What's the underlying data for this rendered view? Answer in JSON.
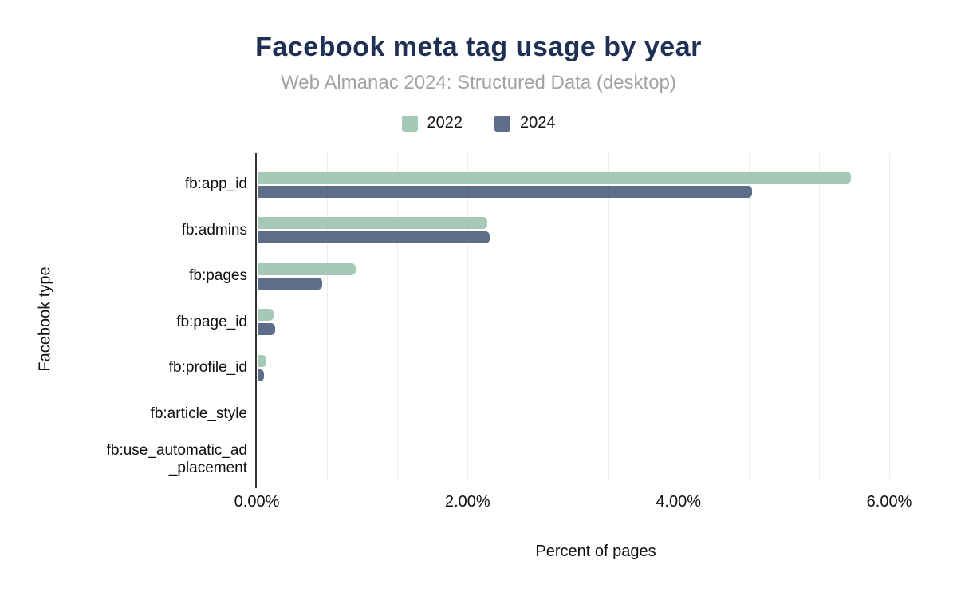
{
  "header": {
    "title": "Facebook meta tag usage by year",
    "subtitle": "Web Almanac 2024: Structured Data (desktop)"
  },
  "chart_data": {
    "type": "bar",
    "orientation": "horizontal",
    "title": "Facebook meta tag usage by year",
    "subtitle": "Web Almanac 2024: Structured Data (desktop)",
    "xlabel": "Percent of pages",
    "ylabel": "Facebook type",
    "categories": [
      "fb:app_id",
      "fb:admins",
      "fb:pages",
      "fb:page_id",
      "fb:profile_id",
      "fb:article_style",
      "fb:use_automatic_ad_placement"
    ],
    "categories_display": [
      [
        "fb:app_id"
      ],
      [
        "fb:admins"
      ],
      [
        "fb:pages"
      ],
      [
        "fb:page_id"
      ],
      [
        "fb:profile_id"
      ],
      [
        "fb:article_style"
      ],
      [
        "fb:use_automatic_ad",
        "_placement"
      ]
    ],
    "series": [
      {
        "name": "2022",
        "color": "#a5c9b6",
        "values": [
          5.63,
          2.18,
          0.93,
          0.15,
          0.08,
          0.01,
          0.01
        ]
      },
      {
        "name": "2024",
        "color": "#5f6e88",
        "values": [
          4.69,
          2.2,
          0.61,
          0.17,
          0.06,
          0.0,
          0.0
        ]
      }
    ],
    "x_ticks": [
      "0.00%",
      "2.00%",
      "4.00%",
      "6.00%"
    ],
    "x_tick_values": [
      0,
      2,
      4,
      6
    ],
    "xlim": [
      0,
      6.4
    ],
    "gridline_step": 0.6667,
    "grid": true,
    "legend_position": "top"
  },
  "colors": {
    "series_2022": "#a5c9b6",
    "series_2024": "#5f6e88",
    "title": "#1e3154",
    "subtitle": "#a2a2a2",
    "axis_line": "#333333",
    "gridline": "#ececec",
    "text": "#111111",
    "background": "#ffffff"
  }
}
